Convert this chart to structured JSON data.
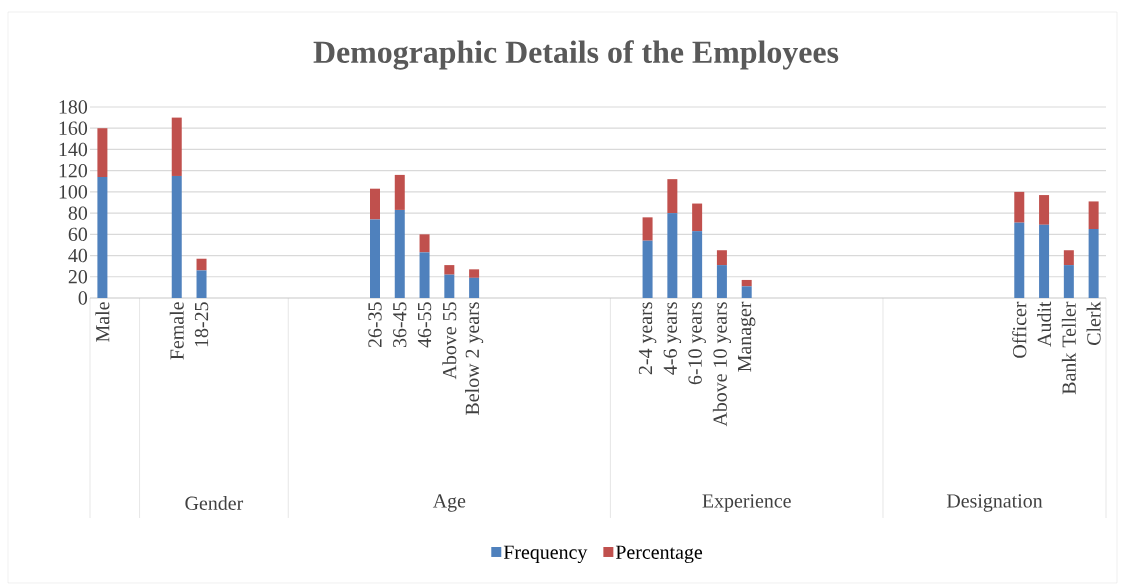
{
  "chart_data": {
    "type": "bar",
    "title": "Demographic Details of the Employees",
    "categories": [
      "Male",
      null,
      null,
      "Female",
      "18-25",
      null,
      null,
      null,
      null,
      null,
      null,
      "26-35",
      "36-45",
      "46-55",
      "Above 55",
      "Below 2 years",
      null,
      null,
      null,
      null,
      null,
      null,
      "2-4 years",
      "4-6 years",
      "6-10 years",
      "Above 10 years",
      "Manager",
      null,
      null,
      null,
      null,
      null,
      null,
      null,
      null,
      null,
      null,
      "Officer",
      "Audit",
      "Bank Teller",
      "Clerk"
    ],
    "series": [
      {
        "name": "Frequency",
        "color": "#4f81bd",
        "values": [
          114,
          null,
          null,
          115,
          26,
          null,
          null,
          null,
          null,
          null,
          null,
          74,
          83,
          43,
          22,
          19,
          null,
          null,
          null,
          null,
          null,
          null,
          54,
          80,
          63,
          31,
          11,
          null,
          null,
          null,
          null,
          null,
          null,
          null,
          null,
          null,
          null,
          71,
          69,
          31,
          65
        ]
      },
      {
        "name": "Percentage",
        "color": "#c0504d",
        "values": [
          46,
          null,
          null,
          55,
          11,
          null,
          null,
          null,
          null,
          null,
          null,
          29,
          33,
          17,
          9,
          8,
          null,
          null,
          null,
          null,
          null,
          null,
          22,
          32,
          26,
          14,
          6,
          null,
          null,
          null,
          null,
          null,
          null,
          null,
          null,
          null,
          null,
          29,
          28,
          14,
          26
        ]
      }
    ],
    "stacked": true,
    "ylim": [
      0,
      180
    ],
    "yticks": [
      0,
      20,
      40,
      60,
      80,
      100,
      120,
      140,
      160,
      180
    ],
    "grid": "y",
    "legend": "bottom",
    "annotations": [
      "Gender",
      "Age",
      "Experience",
      "Designation"
    ]
  }
}
